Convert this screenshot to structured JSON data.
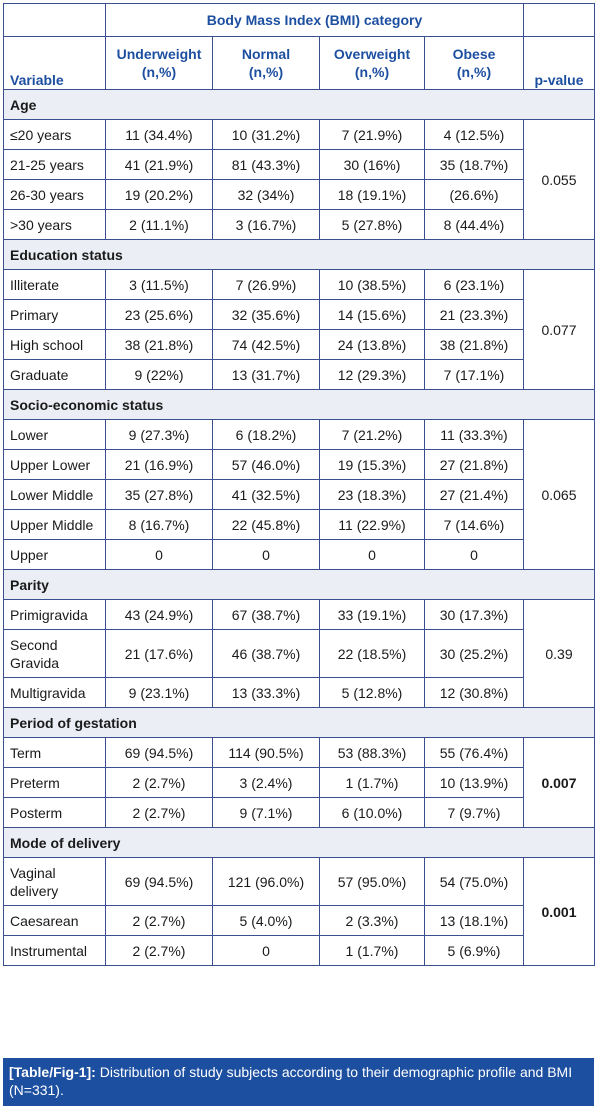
{
  "header": {
    "bmi_category": "Body Mass Index (BMI) category",
    "variable": "Variable",
    "cols": [
      {
        "name": "Underweight",
        "unit": "(n,%)"
      },
      {
        "name": "Normal",
        "unit": "(n,%)"
      },
      {
        "name": "Overweight",
        "unit": "(n,%)"
      },
      {
        "name": "Obese",
        "unit": "(n,%)"
      }
    ],
    "pvalue": "p-value"
  },
  "sections": [
    {
      "title": "Age",
      "pvalue": "0.055",
      "bold": false,
      "rows": [
        {
          "label": "≤20 years",
          "values": [
            "11 (34.4%)",
            "10 (31.2%)",
            "7 (21.9%)",
            "4 (12.5%)"
          ]
        },
        {
          "label": "21-25 years",
          "values": [
            "41 (21.9%)",
            "81 (43.3%)",
            "30 (16%)",
            "35 (18.7%)"
          ]
        },
        {
          "label": "26-30 years",
          "values": [
            "19 (20.2%)",
            "32 (34%)",
            "18 (19.1%)",
            "(26.6%)"
          ]
        },
        {
          "label": ">30 years",
          "values": [
            "2 (11.1%)",
            "3 (16.7%)",
            "5 (27.8%)",
            "8 (44.4%)"
          ]
        }
      ]
    },
    {
      "title": "Education status",
      "pvalue": "0.077",
      "bold": false,
      "rows": [
        {
          "label": "Illiterate",
          "values": [
            "3 (11.5%)",
            "7 (26.9%)",
            "10 (38.5%)",
            "6 (23.1%)"
          ]
        },
        {
          "label": "Primary",
          "values": [
            "23 (25.6%)",
            "32 (35.6%)",
            "14 (15.6%)",
            "21 (23.3%)"
          ]
        },
        {
          "label": "High school",
          "values": [
            "38 (21.8%)",
            "74 (42.5%)",
            "24 (13.8%)",
            "38 (21.8%)"
          ]
        },
        {
          "label": "Graduate",
          "values": [
            "9 (22%)",
            "13 (31.7%)",
            "12 (29.3%)",
            "7 (17.1%)"
          ]
        }
      ]
    },
    {
      "title": "Socio-economic status",
      "pvalue": "0.065",
      "bold": false,
      "rows": [
        {
          "label": "Lower",
          "values": [
            "9 (27.3%)",
            "6 (18.2%)",
            "7 (21.2%)",
            "11 (33.3%)"
          ]
        },
        {
          "label": "Upper Lower",
          "values": [
            "21 (16.9%)",
            "57 (46.0%)",
            "19 (15.3%)",
            "27 (21.8%)"
          ]
        },
        {
          "label": "Lower Middle",
          "values": [
            "35 (27.8%)",
            "41 (32.5%)",
            "23 (18.3%)",
            "27 (21.4%)"
          ]
        },
        {
          "label": "Upper Middle",
          "values": [
            "8 (16.7%)",
            "22 (45.8%)",
            "11 (22.9%)",
            "7 (14.6%)"
          ]
        },
        {
          "label": "Upper",
          "values": [
            "0",
            "0",
            "0",
            "0"
          ]
        }
      ]
    },
    {
      "title": "Parity",
      "pvalue": "0.39",
      "bold": false,
      "rows": [
        {
          "label": "Primigravida",
          "values": [
            "43 (24.9%)",
            "67 (38.7%)",
            "33 (19.1%)",
            "30 (17.3%)"
          ]
        },
        {
          "label": "Second Gravida",
          "values": [
            "21 (17.6%)",
            "46 (38.7%)",
            "22 (18.5%)",
            "30 (25.2%)"
          ]
        },
        {
          "label": "Multigravida",
          "values": [
            "9 (23.1%)",
            "13 (33.3%)",
            "5 (12.8%)",
            "12 (30.8%)"
          ]
        }
      ]
    },
    {
      "title": "Period of gestation",
      "pvalue": "0.007",
      "bold": true,
      "rows": [
        {
          "label": "Term",
          "values": [
            "69 (94.5%)",
            "114 (90.5%)",
            "53 (88.3%)",
            "55 (76.4%)"
          ]
        },
        {
          "label": "Preterm",
          "values": [
            "2 (2.7%)",
            "3 (2.4%)",
            "1 (1.7%)",
            "10 (13.9%)"
          ]
        },
        {
          "label": "Posterm",
          "values": [
            "2 (2.7%)",
            "9 (7.1%)",
            "6 (10.0%)",
            "7 (9.7%)"
          ]
        }
      ]
    },
    {
      "title": "Mode of delivery",
      "pvalue": "0.001",
      "bold": true,
      "rows": [
        {
          "label": "Vaginal delivery",
          "values": [
            "69 (94.5%)",
            "121 (96.0%)",
            "57 (95.0%)",
            "54 (75.0%)"
          ]
        },
        {
          "label": "Caesarean",
          "values": [
            "2 (2.7%)",
            "5 (4.0%)",
            "2 (3.3%)",
            "13 (18.1%)"
          ]
        },
        {
          "label": "Instrumental",
          "values": [
            "2 (2.7%)",
            "0",
            "1 (1.7%)",
            "5 (6.9%)"
          ]
        }
      ]
    }
  ],
  "caption": {
    "label": "[Table/Fig-1]:",
    "text": " Distribution of study subjects according to their demographic profile and BMI (N=331)."
  },
  "colors": {
    "accent": "#1d4fa0",
    "border": "#3a4f8f",
    "section_bg": "#eceef6"
  }
}
